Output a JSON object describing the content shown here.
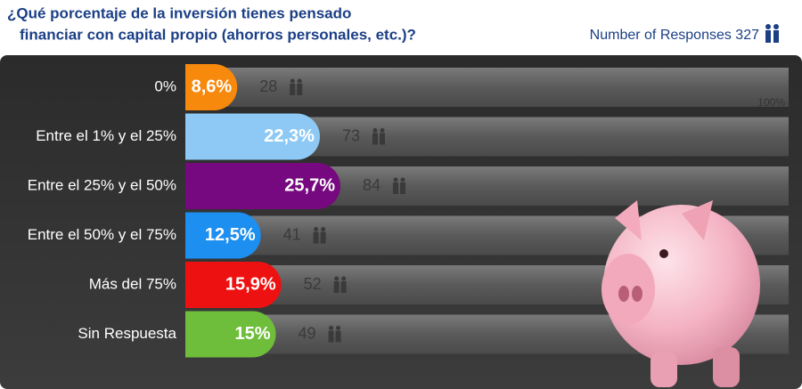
{
  "chart_data": {
    "type": "bar",
    "title": [
      "¿Qué porcentaje de la inversión tienes pensado",
      "financiar con capital propio (ahorros personales, etc.)?"
    ],
    "subtitle": "Number of Responses 327",
    "categories": [
      "0%",
      "Entre el 1% y el 25%",
      "Entre el 25% y el 50%",
      "Entre el 50% y el 75%",
      "Más del 75%",
      "Sin Respuesta"
    ],
    "values": [
      8.6,
      22.3,
      25.7,
      12.5,
      15.9,
      15
    ],
    "value_labels": [
      "8,6%",
      "22,3%",
      "25,7%",
      "12,5%",
      "15,9%",
      "15%"
    ],
    "counts": [
      28,
      73,
      84,
      41,
      52,
      49
    ],
    "colors": [
      "#f7890c",
      "#8dc9f4",
      "#76097f",
      "#1d8ff0",
      "#ee1111",
      "#6ebd3b"
    ],
    "xlim": [
      0,
      100
    ],
    "xticks": [
      {
        "value": 100,
        "label": "100%"
      }
    ]
  }
}
